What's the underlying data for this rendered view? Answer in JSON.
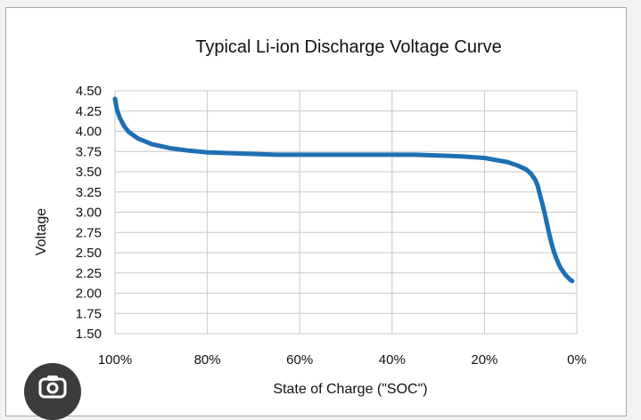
{
  "chart_data": {
    "type": "line",
    "title": "Typical Li-ion Discharge Voltage Curve",
    "xlabel": "State of Charge (\"SOC\")",
    "ylabel": "Voltage",
    "x_axis_reversed": true,
    "xlim": [
      100,
      0
    ],
    "ylim": [
      1.5,
      4.5
    ],
    "x_ticks": [
      100,
      80,
      60,
      40,
      20,
      0
    ],
    "x_tick_labels": [
      "100%",
      "80%",
      "60%",
      "40%",
      "20%",
      "0%"
    ],
    "y_ticks": [
      4.5,
      4.25,
      4.0,
      3.75,
      3.5,
      3.25,
      3.0,
      2.75,
      2.5,
      2.25,
      2.0,
      1.75,
      1.5
    ],
    "y_tick_labels": [
      "4.50",
      "4.25",
      "4.00",
      "3.75",
      "3.50",
      "3.25",
      "3.00",
      "2.75",
      "2.50",
      "2.25",
      "2.00",
      "1.75",
      "1.50"
    ],
    "grid": true,
    "series": [
      {
        "color": "#1f6fb2",
        "x": [
          100,
          99.6,
          99,
          98,
          97,
          95,
          92,
          88,
          84,
          80,
          75,
          70,
          65,
          60,
          55,
          50,
          45,
          40,
          35,
          30,
          25,
          20,
          17,
          15,
          13,
          11,
          10,
          9,
          8.5,
          8,
          7.5,
          7,
          6.5,
          6,
          5.5,
          5,
          4.5,
          4,
          3.5,
          3,
          2.5,
          2,
          1.5,
          1
        ],
        "y": [
          4.4,
          4.27,
          4.17,
          4.06,
          3.99,
          3.91,
          3.84,
          3.79,
          3.76,
          3.74,
          3.73,
          3.72,
          3.71,
          3.71,
          3.71,
          3.71,
          3.71,
          3.71,
          3.71,
          3.7,
          3.69,
          3.67,
          3.64,
          3.62,
          3.58,
          3.53,
          3.48,
          3.4,
          3.33,
          3.22,
          3.11,
          3.0,
          2.87,
          2.74,
          2.62,
          2.52,
          2.44,
          2.37,
          2.31,
          2.27,
          2.23,
          2.2,
          2.17,
          2.15
        ]
      }
    ]
  },
  "overlay": {
    "lens_icon": "google-lens-icon"
  }
}
